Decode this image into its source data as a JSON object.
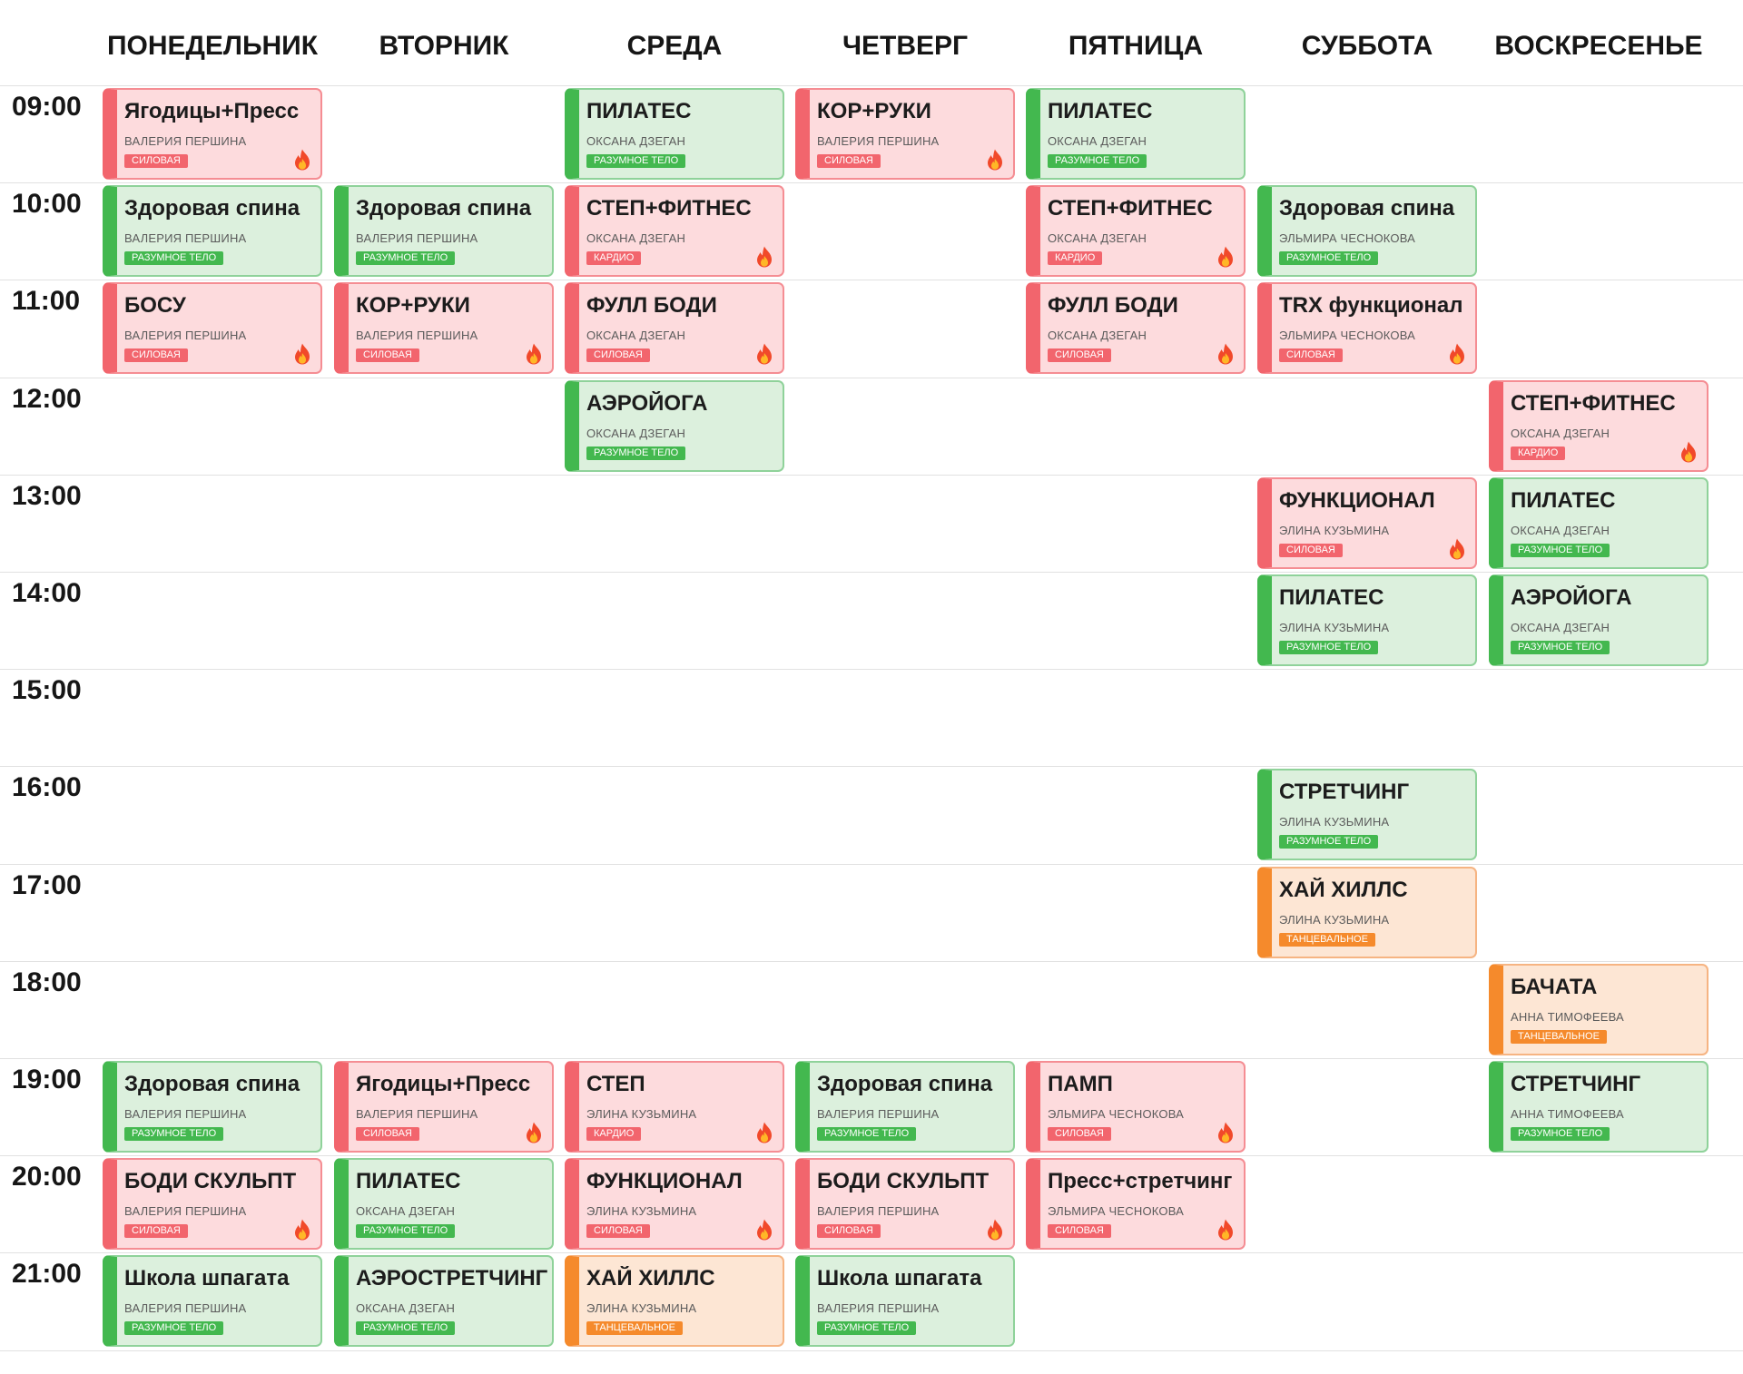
{
  "days": [
    {
      "key": "mon",
      "label": "ПОНЕДЕЛЬНИК"
    },
    {
      "key": "tue",
      "label": "ВТОРНИК"
    },
    {
      "key": "wed",
      "label": "СРЕДА"
    },
    {
      "key": "thu",
      "label": "ЧЕТВЕРГ"
    },
    {
      "key": "fri",
      "label": "ПЯТНИЦА"
    },
    {
      "key": "sat",
      "label": "СУББОТА"
    },
    {
      "key": "sun",
      "label": "ВОСКРЕСЕНЬЕ"
    }
  ],
  "times": [
    "09:00",
    "10:00",
    "11:00",
    "12:00",
    "13:00",
    "14:00",
    "15:00",
    "16:00",
    "17:00",
    "18:00",
    "19:00",
    "20:00",
    "21:00"
  ],
  "categories": {
    "sila": {
      "label": "СИЛОВАЯ",
      "color": "#f2656d",
      "hot": true
    },
    "kardio": {
      "label": "КАРДИО",
      "color": "#f2656d",
      "hot": true
    },
    "telo": {
      "label": "РАЗУМНОЕ ТЕЛО",
      "color": "#43b84f",
      "hot": false
    },
    "tanec": {
      "label": "ТАНЦЕВАЛЬНОЕ",
      "color": "#f58a2c",
      "hot": false
    }
  },
  "icons": {
    "hot": "fire-icon"
  },
  "classes": [
    {
      "day": "mon",
      "time": "09:00",
      "title": "Ягодицы+Пресс",
      "trainer": "ВАЛЕРИЯ ПЕРШИНА",
      "category": "sila"
    },
    {
      "day": "wed",
      "time": "09:00",
      "title": "ПИЛАТЕС",
      "trainer": "ОКСАНА ДЗЕГАН",
      "category": "telo"
    },
    {
      "day": "thu",
      "time": "09:00",
      "title": "КОР+РУКИ",
      "trainer": "ВАЛЕРИЯ ПЕРШИНА",
      "category": "sila"
    },
    {
      "day": "fri",
      "time": "09:00",
      "title": "ПИЛАТЕС",
      "trainer": "ОКСАНА ДЗЕГАН",
      "category": "telo"
    },
    {
      "day": "mon",
      "time": "10:00",
      "title": "Здоровая спина",
      "trainer": "ВАЛЕРИЯ ПЕРШИНА",
      "category": "telo"
    },
    {
      "day": "tue",
      "time": "10:00",
      "title": "Здоровая спина",
      "trainer": "ВАЛЕРИЯ ПЕРШИНА",
      "category": "telo"
    },
    {
      "day": "wed",
      "time": "10:00",
      "title": "СТЕП+ФИТНЕС",
      "trainer": "ОКСАНА ДЗЕГАН",
      "category": "kardio"
    },
    {
      "day": "fri",
      "time": "10:00",
      "title": "СТЕП+ФИТНЕС",
      "trainer": "ОКСАНА ДЗЕГАН",
      "category": "kardio"
    },
    {
      "day": "sat",
      "time": "10:00",
      "title": "Здоровая спина",
      "trainer": "ЭЛЬМИРА ЧЕСНОКОВА",
      "category": "telo"
    },
    {
      "day": "mon",
      "time": "11:00",
      "title": "БОСУ",
      "trainer": "ВАЛЕРИЯ ПЕРШИНА",
      "category": "sila"
    },
    {
      "day": "tue",
      "time": "11:00",
      "title": "КОР+РУКИ",
      "trainer": "ВАЛЕРИЯ ПЕРШИНА",
      "category": "sila"
    },
    {
      "day": "wed",
      "time": "11:00",
      "title": "ФУЛЛ БОДИ",
      "trainer": "ОКСАНА ДЗЕГАН",
      "category": "sila"
    },
    {
      "day": "fri",
      "time": "11:00",
      "title": "ФУЛЛ БОДИ",
      "trainer": "ОКСАНА ДЗЕГАН",
      "category": "sila"
    },
    {
      "day": "sat",
      "time": "11:00",
      "title": "TRX функционал",
      "trainer": "ЭЛЬМИРА ЧЕСНОКОВА",
      "category": "sila"
    },
    {
      "day": "wed",
      "time": "12:00",
      "title": "АЭРОЙОГА",
      "trainer": "ОКСАНА ДЗЕГАН",
      "category": "telo"
    },
    {
      "day": "sun",
      "time": "12:00",
      "title": "СТЕП+ФИТНЕС",
      "trainer": "ОКСАНА ДЗЕГАН",
      "category": "kardio"
    },
    {
      "day": "sat",
      "time": "13:00",
      "title": "ФУНКЦИОНАЛ",
      "trainer": "ЭЛИНА КУЗЬМИНА",
      "category": "sila"
    },
    {
      "day": "sun",
      "time": "13:00",
      "title": "ПИЛАТЕС",
      "trainer": "ОКСАНА ДЗЕГАН",
      "category": "telo"
    },
    {
      "day": "sat",
      "time": "14:00",
      "title": "ПИЛАТЕС",
      "trainer": "ЭЛИНА КУЗЬМИНА",
      "category": "telo"
    },
    {
      "day": "sun",
      "time": "14:00",
      "title": "АЭРОЙОГА",
      "trainer": "ОКСАНА ДЗЕГАН",
      "category": "telo"
    },
    {
      "day": "sat",
      "time": "16:00",
      "title": "СТРЕТЧИНГ",
      "trainer": "ЭЛИНА КУЗЬМИНА",
      "category": "telo"
    },
    {
      "day": "sat",
      "time": "17:00",
      "title": "ХАЙ ХИЛЛС",
      "trainer": "ЭЛИНА КУЗЬМИНА",
      "category": "tanec"
    },
    {
      "day": "sun",
      "time": "18:00",
      "title": "БАЧАТА",
      "trainer": "АННА ТИМОФЕЕВА",
      "category": "tanec"
    },
    {
      "day": "mon",
      "time": "19:00",
      "title": "Здоровая спина",
      "trainer": "ВАЛЕРИЯ ПЕРШИНА",
      "category": "telo"
    },
    {
      "day": "tue",
      "time": "19:00",
      "title": "Ягодицы+Пресс",
      "trainer": "ВАЛЕРИЯ ПЕРШИНА",
      "category": "sila"
    },
    {
      "day": "wed",
      "time": "19:00",
      "title": "СТЕП",
      "trainer": "ЭЛИНА КУЗЬМИНА",
      "category": "kardio"
    },
    {
      "day": "thu",
      "time": "19:00",
      "title": "Здоровая спина",
      "trainer": "ВАЛЕРИЯ ПЕРШИНА",
      "category": "telo"
    },
    {
      "day": "fri",
      "time": "19:00",
      "title": "ПАМП",
      "trainer": "ЭЛЬМИРА ЧЕСНОКОВА",
      "category": "sila"
    },
    {
      "day": "sun",
      "time": "19:00",
      "title": "СТРЕТЧИНГ",
      "trainer": "АННА ТИМОФЕЕВА",
      "category": "telo"
    },
    {
      "day": "mon",
      "time": "20:00",
      "title": "БОДИ СКУЛЬПТ",
      "trainer": "ВАЛЕРИЯ ПЕРШИНА",
      "category": "sila"
    },
    {
      "day": "tue",
      "time": "20:00",
      "title": "ПИЛАТЕС",
      "trainer": "ОКСАНА ДЗЕГАН",
      "category": "telo"
    },
    {
      "day": "wed",
      "time": "20:00",
      "title": "ФУНКЦИОНАЛ",
      "trainer": "ЭЛИНА КУЗЬМИНА",
      "category": "sila"
    },
    {
      "day": "thu",
      "time": "20:00",
      "title": "БОДИ СКУЛЬПТ",
      "trainer": "ВАЛЕРИЯ ПЕРШИНА",
      "category": "sila"
    },
    {
      "day": "fri",
      "time": "20:00",
      "title": "Пресс+стретчинг",
      "trainer": "ЭЛЬМИРА ЧЕСНОКОВА",
      "category": "sila"
    },
    {
      "day": "mon",
      "time": "21:00",
      "title": "Школа шпагата",
      "trainer": "ВАЛЕРИЯ ПЕРШИНА",
      "category": "telo"
    },
    {
      "day": "tue",
      "time": "21:00",
      "title": "АЭРОСТРЕТЧИНГ",
      "trainer": "ОКСАНА ДЗЕГАН",
      "category": "telo"
    },
    {
      "day": "wed",
      "time": "21:00",
      "title": "ХАЙ ХИЛЛС",
      "trainer": "ЭЛИНА КУЗЬМИНА",
      "category": "tanec"
    },
    {
      "day": "thu",
      "time": "21:00",
      "title": "Школа шпагата",
      "trainer": "ВАЛЕРИЯ ПЕРШИНА",
      "category": "telo"
    }
  ]
}
